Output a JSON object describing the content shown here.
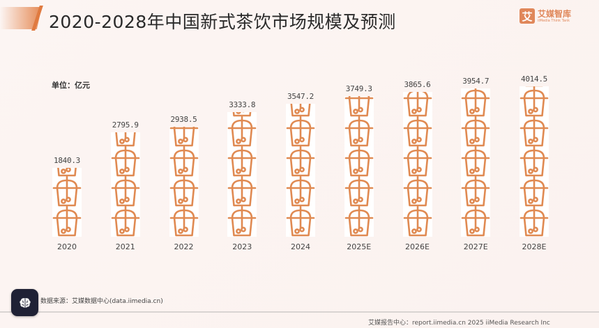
{
  "header": {
    "title": "2020-2028年中国新式茶饮市场规模及预测",
    "logo_glyph": "艾",
    "logo_cn": "艾媒智库",
    "logo_en": "iiMedia Think Tank"
  },
  "unit_label": "单位：亿元",
  "source": "数据来源：艾媒数据中心(data.iimedia.cn)",
  "footer": "艾媒报告中心：report.iimedia.cn   2025 iiMedia Research Inc",
  "colors": {
    "accent": "#e0875a",
    "icon_stroke": "#e08a52",
    "background": "#fbf3f1",
    "fab": "#1f2135"
  },
  "fab": {
    "icon": "brain-icon"
  },
  "chart_data": {
    "type": "bar",
    "subtype": "pictograph",
    "title": "2020-2028年中国新式茶饮市场规模及预测",
    "ylabel": "单位：亿元",
    "xlabel": "",
    "icon": "bubble-tea-cup",
    "categories": [
      "2020",
      "2021",
      "2022",
      "2023",
      "2024",
      "2025E",
      "2026E",
      "2027E",
      "2028E"
    ],
    "values": [
      1840.3,
      2795.9,
      2938.5,
      3333.8,
      3547.2,
      3749.3,
      3865.6,
      3954.7,
      4014.5
    ],
    "value_labels": [
      "1840.3",
      "2795.9",
      "2938.5",
      "3333.8",
      "3547.2",
      "3749.3",
      "3865.6",
      "3954.7",
      "4014.5"
    ],
    "ylim": [
      0,
      4014.5
    ],
    "grid": false,
    "legend": null
  }
}
